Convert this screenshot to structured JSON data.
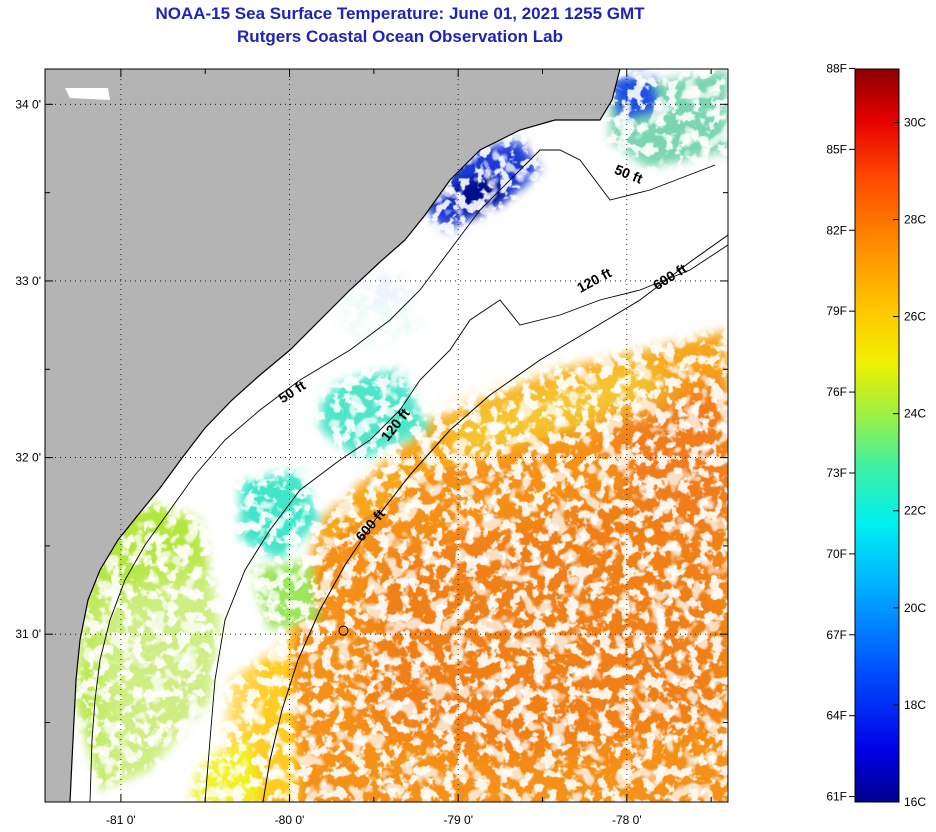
{
  "header": {
    "title_line_1": "NOAA-15 Sea Surface Temperature:  June 01, 2021 1255 GMT",
    "title_line_2": "Rutgers Coastal Ocean Observation Lab"
  },
  "map": {
    "lon_range": [
      -81.45,
      -77.4
    ],
    "lat_range": [
      30.05,
      34.2
    ],
    "lon_ticks": [
      {
        "value": -81,
        "label": "-81 0'"
      },
      {
        "value": -80,
        "label": "-80 0'"
      },
      {
        "value": -79,
        "label": "-79 0'"
      },
      {
        "value": -78,
        "label": "-78 0'"
      }
    ],
    "lat_ticks": [
      {
        "value": 34,
        "label": "34 0'"
      },
      {
        "value": 33,
        "label": "33 0'"
      },
      {
        "value": 32,
        "label": "32 0'"
      },
      {
        "value": 31,
        "label": "31 0'"
      }
    ],
    "grid": "dotted",
    "colors": {
      "land": "#b4b4b4",
      "cloud": "#ffffff",
      "coastline": "#000000"
    },
    "contour_labels": [
      {
        "text": "50 ft",
        "lon": -78.0,
        "lat": 33.58,
        "rotate": 22
      },
      {
        "text": "120 ft",
        "lon": -78.18,
        "lat": 32.98,
        "rotate": -28
      },
      {
        "text": "600 ft",
        "lon": -77.73,
        "lat": 33.0,
        "rotate": -32
      },
      {
        "text": "50 ft",
        "lon": -79.97,
        "lat": 32.35,
        "rotate": -33
      },
      {
        "text": "120 ft",
        "lon": -79.35,
        "lat": 32.17,
        "rotate": -52
      },
      {
        "text": "600 ft",
        "lon": -79.5,
        "lat": 31.6,
        "rotate": -50
      }
    ],
    "marker": {
      "lon": -79.68,
      "lat": 31.02
    }
  },
  "colorbar": {
    "fahrenheit_labels": [
      "88F",
      "85F",
      "82F",
      "79F",
      "76F",
      "73F",
      "70F",
      "67F",
      "64F",
      "61F"
    ],
    "celsius_labels": [
      "30C",
      "28C",
      "26C",
      "24C",
      "22C",
      "20C",
      "18C",
      "16C"
    ],
    "range_celsius": [
      16,
      31.1
    ]
  }
}
